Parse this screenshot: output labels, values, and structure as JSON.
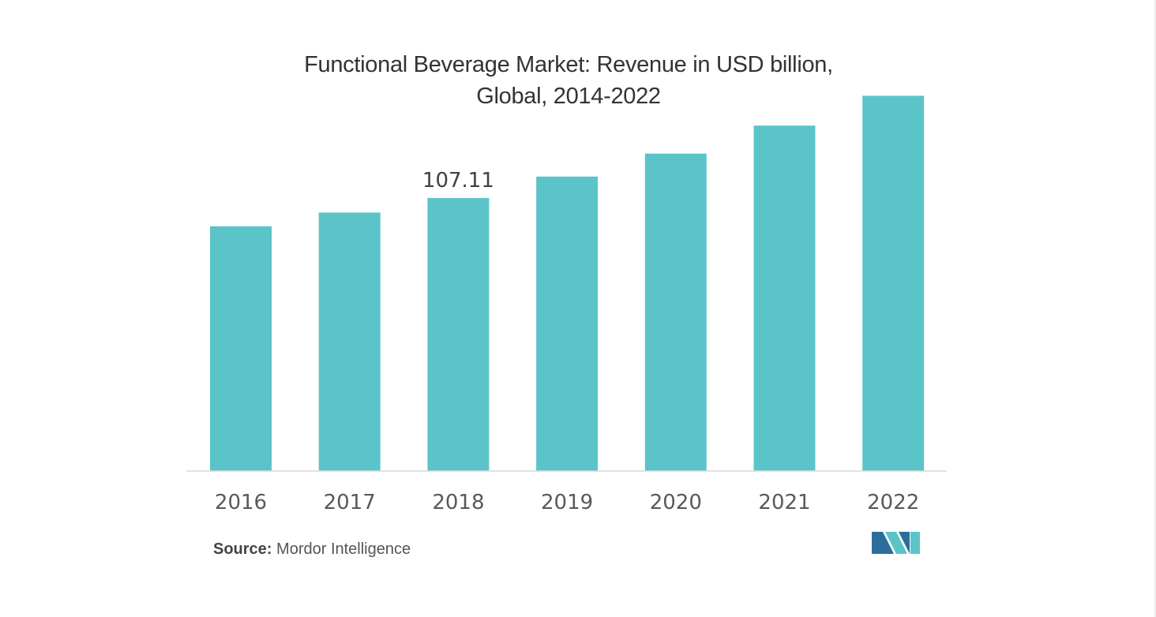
{
  "title_line1": "Functional Beverage Market: Revenue in USD billion,",
  "title_line2": "Global, 2014-2022",
  "source_label": "Source:",
  "source_text": "Mordor Intelligence",
  "colors": {
    "bar": "#5bc4c8",
    "axis": "#d9d9d9",
    "logo_dark": "#2c6e9b",
    "logo_light": "#5bc4c8"
  },
  "chart_data": {
    "type": "bar",
    "title": "Functional Beverage Market: Revenue in USD billion, Global, 2014-2022",
    "categories": [
      "2016",
      "2017",
      "2018",
      "2019",
      "2020",
      "2021",
      "2022"
    ],
    "values": [
      96.0,
      101.4,
      107.11,
      115.5,
      124.5,
      135.5,
      147.2
    ],
    "data_labels": [
      null,
      null,
      "107.11",
      null,
      null,
      null,
      null
    ],
    "xlabel": "",
    "ylabel": "",
    "ylim": [
      0,
      160
    ],
    "grid": false,
    "legend": "none"
  }
}
